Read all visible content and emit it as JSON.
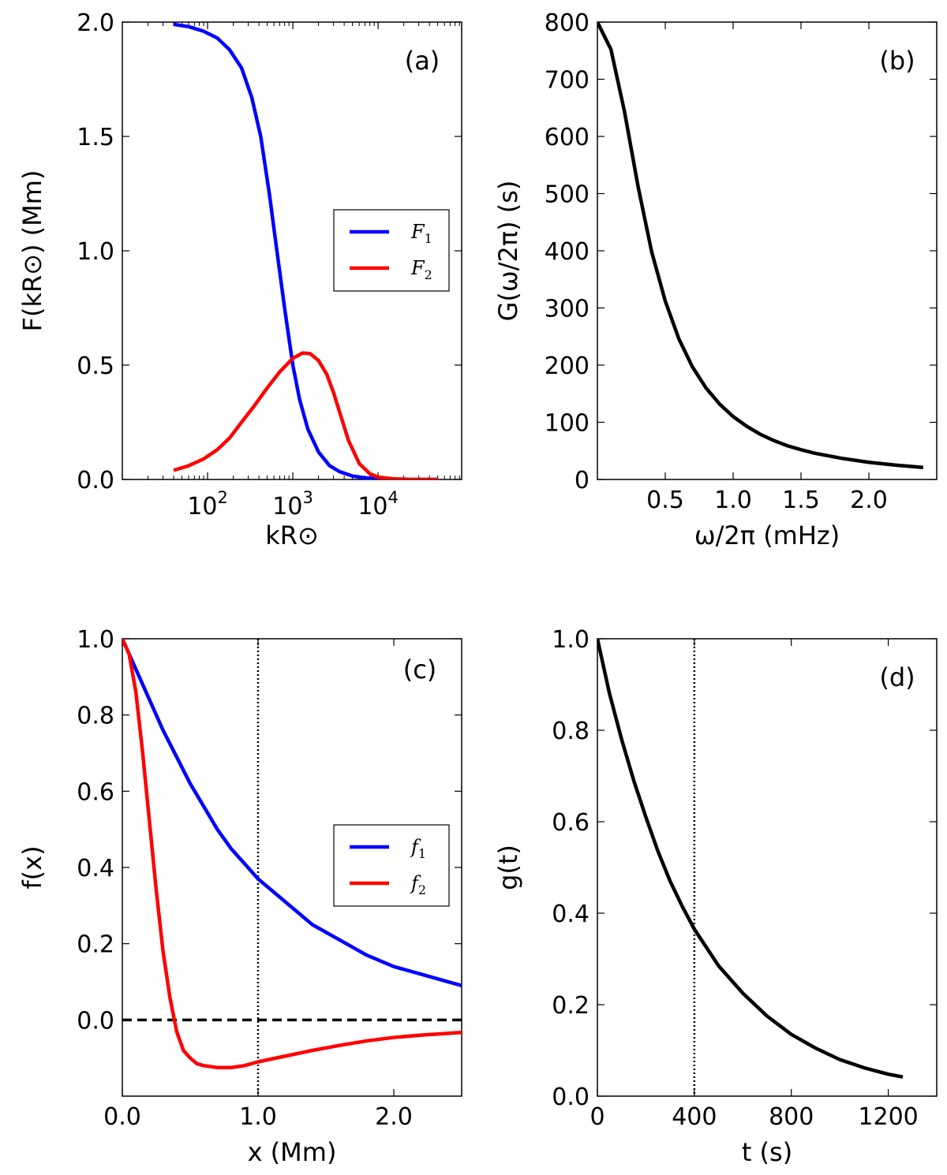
{
  "chart_data": [
    {
      "id": "a",
      "type": "line",
      "panel_label": "(a)",
      "xscale": "log",
      "xlim_log10": [
        1.0,
        4.98
      ],
      "ylim": [
        0,
        2.0
      ],
      "xlabel": "kR⊙",
      "ylabel": "F(kR⊙) (Mm)",
      "xticks": [
        {
          "value": 100,
          "base": "10",
          "exp": "2"
        },
        {
          "value": 1000,
          "base": "10",
          "exp": "3"
        },
        {
          "value": 10000,
          "base": "10",
          "exp": "4"
        }
      ],
      "yticks": [
        {
          "value": 0.0,
          "label": "0.0"
        },
        {
          "value": 0.5,
          "label": "0.5"
        },
        {
          "value": 1.0,
          "label": "1.0"
        },
        {
          "value": 1.5,
          "label": "1.5"
        },
        {
          "value": 2.0,
          "label": "2.0"
        }
      ],
      "legend": "center-right",
      "series": [
        {
          "name": "F1",
          "label_main": "F",
          "label_sub": "1",
          "color": "#0000ff",
          "x": [
            40,
            60,
            90,
            130,
            180,
            250,
            330,
            420,
            530,
            650,
            800,
            1000,
            1200,
            1500,
            2000,
            2700,
            3500,
            5000,
            7000,
            10000,
            15000,
            25000,
            50000
          ],
          "y": [
            1.99,
            1.98,
            1.96,
            1.93,
            1.88,
            1.8,
            1.67,
            1.5,
            1.25,
            1.0,
            0.75,
            0.5,
            0.35,
            0.22,
            0.12,
            0.06,
            0.035,
            0.015,
            0.007,
            0.003,
            0.001,
            0.0,
            0.0
          ]
        },
        {
          "name": "F2",
          "label_main": "F",
          "label_sub": "2",
          "color": "#ff0000",
          "x": [
            40,
            60,
            90,
            130,
            180,
            250,
            350,
            500,
            700,
            1000,
            1300,
            1600,
            2000,
            2500,
            3000,
            3500,
            4500,
            6000,
            8000,
            10000,
            15000,
            25000,
            50000
          ],
          "y": [
            0.04,
            0.06,
            0.09,
            0.13,
            0.18,
            0.25,
            0.32,
            0.4,
            0.47,
            0.53,
            0.553,
            0.55,
            0.52,
            0.46,
            0.38,
            0.3,
            0.17,
            0.07,
            0.025,
            0.01,
            0.003,
            0.0,
            0.0
          ]
        }
      ]
    },
    {
      "id": "b",
      "type": "line",
      "panel_label": "(b)",
      "xscale": "linear",
      "xlim": [
        0.0,
        2.5
      ],
      "ylim": [
        0,
        800
      ],
      "xlabel": "ω/2π (mHz)",
      "ylabel": "G(ω/2π) (s)",
      "xticks": [
        {
          "value": 0.5,
          "label": "0.5"
        },
        {
          "value": 1.0,
          "label": "1.0"
        },
        {
          "value": 1.5,
          "label": "1.5"
        },
        {
          "value": 2.0,
          "label": "2.0"
        }
      ],
      "yticks": [
        {
          "value": 0,
          "label": "0"
        },
        {
          "value": 100,
          "label": "100"
        },
        {
          "value": 200,
          "label": "200"
        },
        {
          "value": 300,
          "label": "300"
        },
        {
          "value": 400,
          "label": "400"
        },
        {
          "value": 500,
          "label": "500"
        },
        {
          "value": 600,
          "label": "600"
        },
        {
          "value": 700,
          "label": "700"
        },
        {
          "value": 800,
          "label": "800"
        }
      ],
      "series": [
        {
          "name": "G",
          "color": "#000000",
          "x": [
            0.0,
            0.1,
            0.2,
            0.3,
            0.4,
            0.5,
            0.6,
            0.7,
            0.8,
            0.9,
            1.0,
            1.1,
            1.2,
            1.3,
            1.4,
            1.5,
            1.6,
            1.8,
            2.0,
            2.2,
            2.4
          ],
          "y": [
            800,
            752,
            643,
            512,
            398,
            312,
            246,
            197,
            160,
            132,
            110,
            93,
            79,
            68,
            59,
            52,
            46,
            37,
            30,
            25,
            21
          ]
        }
      ]
    },
    {
      "id": "c",
      "type": "line",
      "panel_label": "(c)",
      "xscale": "linear",
      "xlim": [
        0.0,
        2.5
      ],
      "ylim": [
        -0.2,
        1.0
      ],
      "xlabel": "x (Mm)",
      "ylabel": "f(x)",
      "xticks": [
        {
          "value": 0.0,
          "label": "0.0"
        },
        {
          "value": 1.0,
          "label": "1.0"
        },
        {
          "value": 2.0,
          "label": "2.0"
        }
      ],
      "yticks": [
        {
          "value": 0.0,
          "label": "0.0"
        },
        {
          "value": 0.2,
          "label": "0.2"
        },
        {
          "value": 0.4,
          "label": "0.4"
        },
        {
          "value": 0.6,
          "label": "0.6"
        },
        {
          "value": 0.8,
          "label": "0.8"
        },
        {
          "value": 1.0,
          "label": "1.0"
        }
      ],
      "legend": "center-right",
      "hline": 0.0,
      "vline": 1.0,
      "series": [
        {
          "name": "f1",
          "label_main": "f",
          "label_sub": "1",
          "color": "#0000ff",
          "x": [
            0.0,
            0.05,
            0.1,
            0.2,
            0.3,
            0.4,
            0.5,
            0.6,
            0.7,
            0.8,
            0.9,
            1.0,
            1.2,
            1.4,
            1.6,
            1.8,
            2.0,
            2.2,
            2.5
          ],
          "y": [
            1.0,
            0.96,
            0.92,
            0.84,
            0.76,
            0.69,
            0.62,
            0.56,
            0.5,
            0.45,
            0.41,
            0.37,
            0.31,
            0.25,
            0.21,
            0.17,
            0.14,
            0.12,
            0.09
          ]
        },
        {
          "name": "f2",
          "label_main": "f",
          "label_sub": "2",
          "color": "#ff0000",
          "x": [
            0.0,
            0.05,
            0.1,
            0.15,
            0.2,
            0.25,
            0.3,
            0.35,
            0.4,
            0.45,
            0.5,
            0.55,
            0.6,
            0.7,
            0.8,
            0.9,
            1.0,
            1.2,
            1.4,
            1.6,
            1.8,
            2.0,
            2.2,
            2.5
          ],
          "y": [
            1.0,
            0.96,
            0.86,
            0.7,
            0.52,
            0.34,
            0.18,
            0.06,
            -0.03,
            -0.08,
            -0.1,
            -0.115,
            -0.12,
            -0.125,
            -0.125,
            -0.12,
            -0.11,
            -0.095,
            -0.08,
            -0.067,
            -0.055,
            -0.046,
            -0.04,
            -0.033
          ]
        }
      ]
    },
    {
      "id": "d",
      "type": "line",
      "panel_label": "(d)",
      "xscale": "linear",
      "xlim": [
        0,
        1400
      ],
      "ylim": [
        0.0,
        1.0
      ],
      "xlabel": "t (s)",
      "ylabel": "g(t)",
      "xticks": [
        {
          "value": 0,
          "label": "0"
        },
        {
          "value": 400,
          "label": "400"
        },
        {
          "value": 800,
          "label": "800"
        },
        {
          "value": 1200,
          "label": "1200"
        }
      ],
      "yticks": [
        {
          "value": 0.0,
          "label": "0.0"
        },
        {
          "value": 0.2,
          "label": "0.2"
        },
        {
          "value": 0.4,
          "label": "0.4"
        },
        {
          "value": 0.6,
          "label": "0.6"
        },
        {
          "value": 0.8,
          "label": "0.8"
        },
        {
          "value": 1.0,
          "label": "1.0"
        }
      ],
      "vline": 400,
      "series": [
        {
          "name": "g",
          "color": "#000000",
          "x": [
            0,
            50,
            100,
            150,
            200,
            250,
            300,
            350,
            400,
            450,
            500,
            600,
            700,
            800,
            900,
            1000,
            1100,
            1200,
            1260
          ],
          "y": [
            1.0,
            0.88,
            0.78,
            0.69,
            0.61,
            0.535,
            0.47,
            0.415,
            0.365,
            0.325,
            0.285,
            0.225,
            0.175,
            0.135,
            0.105,
            0.08,
            0.062,
            0.048,
            0.042
          ]
        }
      ]
    }
  ]
}
